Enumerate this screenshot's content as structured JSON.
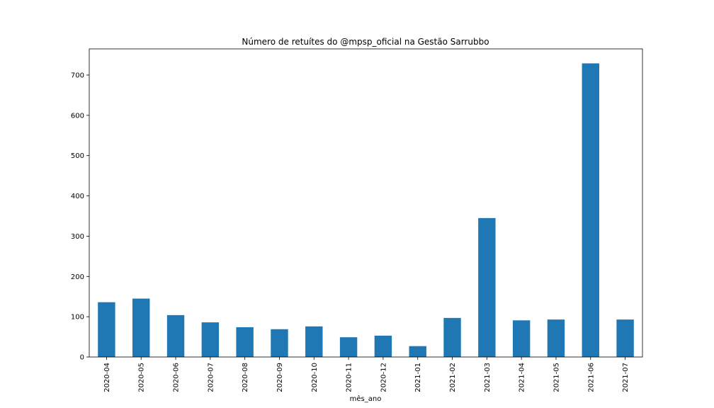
{
  "chart_data": {
    "type": "bar",
    "title": "Número de retuítes do @mpsp_oficial na Gestão Sarrubbo",
    "xlabel": "mês_ano",
    "ylabel": "",
    "categories": [
      "2020-04",
      "2020-05",
      "2020-06",
      "2020-07",
      "2020-08",
      "2020-09",
      "2020-10",
      "2020-11",
      "2020-12",
      "2021-01",
      "2021-02",
      "2021-03",
      "2021-04",
      "2021-05",
      "2021-06",
      "2021-07"
    ],
    "series": [
      {
        "values": [
          136,
          145,
          104,
          86,
          74,
          69,
          76,
          49,
          53,
          27,
          97,
          345,
          91,
          93,
          729,
          93
        ]
      }
    ],
    "ylim": [
      0,
      765
    ],
    "yticks": [
      0,
      100,
      200,
      300,
      400,
      500,
      600,
      700
    ],
    "legend": "none",
    "grid": false,
    "bar_color": "#1f77b4"
  }
}
